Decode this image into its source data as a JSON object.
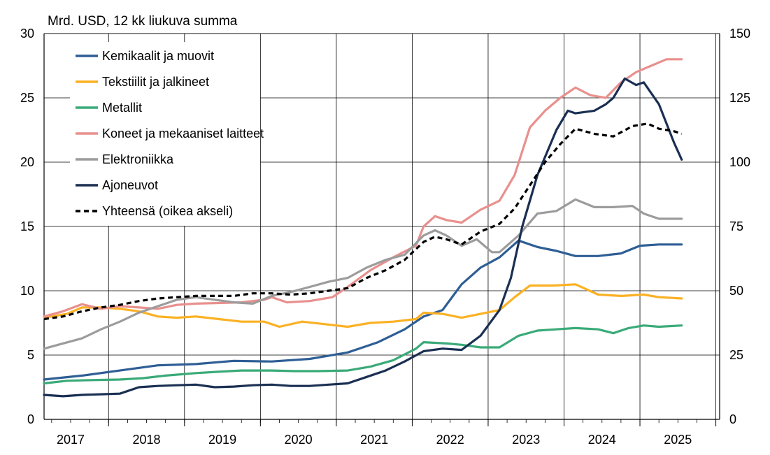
{
  "chart_data": {
    "type": "line",
    "unit_label": "Mrd. USD, 12 kk liukuva summa",
    "x_ticks": [
      "2017",
      "2018",
      "2019",
      "2020",
      "2021",
      "2022",
      "2023",
      "2024",
      "2025"
    ],
    "x_range": [
      2017.0,
      2025.9
    ],
    "y_left": {
      "range": [
        0,
        30
      ],
      "ticks": [
        "0",
        "5",
        "10",
        "15",
        "20",
        "25",
        "30"
      ]
    },
    "y_right": {
      "range": [
        0,
        150
      ],
      "ticks": [
        "0",
        "25",
        "50",
        "75",
        "100",
        "125",
        "150"
      ]
    },
    "grid": true,
    "legend_position": "top-left",
    "series": [
      {
        "name": "Kemikaalit ja muovit",
        "color": "#2E5E95",
        "dash": false,
        "axis": "left",
        "points": [
          [
            2017.0,
            3.1
          ],
          [
            2017.5,
            3.4
          ],
          [
            2018.0,
            3.8
          ],
          [
            2018.5,
            4.2
          ],
          [
            2019.0,
            4.3
          ],
          [
            2019.5,
            4.55
          ],
          [
            2020.0,
            4.5
          ],
          [
            2020.5,
            4.7
          ],
          [
            2021.0,
            5.2
          ],
          [
            2021.4,
            6.0
          ],
          [
            2021.75,
            7.0
          ],
          [
            2022.0,
            8.0
          ],
          [
            2022.25,
            8.5
          ],
          [
            2022.5,
            10.5
          ],
          [
            2022.75,
            11.8
          ],
          [
            2023.0,
            12.6
          ],
          [
            2023.25,
            13.9
          ],
          [
            2023.5,
            13.4
          ],
          [
            2023.75,
            13.1
          ],
          [
            2024.0,
            12.7
          ],
          [
            2024.3,
            12.7
          ],
          [
            2024.6,
            12.9
          ],
          [
            2024.85,
            13.5
          ],
          [
            2025.1,
            13.6
          ],
          [
            2025.4,
            13.6
          ]
        ]
      },
      {
        "name": "Tekstiilit ja jalkineet",
        "color": "#FBB124",
        "dash": false,
        "axis": "left",
        "points": [
          [
            2017.0,
            7.9
          ],
          [
            2017.3,
            8.2
          ],
          [
            2017.5,
            8.7
          ],
          [
            2017.75,
            8.7
          ],
          [
            2018.0,
            8.6
          ],
          [
            2018.25,
            8.4
          ],
          [
            2018.5,
            8.0
          ],
          [
            2018.75,
            7.9
          ],
          [
            2019.0,
            8.0
          ],
          [
            2019.3,
            7.8
          ],
          [
            2019.6,
            7.6
          ],
          [
            2019.9,
            7.6
          ],
          [
            2020.1,
            7.2
          ],
          [
            2020.4,
            7.6
          ],
          [
            2020.7,
            7.4
          ],
          [
            2021.0,
            7.2
          ],
          [
            2021.3,
            7.5
          ],
          [
            2021.6,
            7.6
          ],
          [
            2021.9,
            7.8
          ],
          [
            2022.0,
            8.3
          ],
          [
            2022.25,
            8.2
          ],
          [
            2022.5,
            7.9
          ],
          [
            2022.75,
            8.2
          ],
          [
            2023.0,
            8.5
          ],
          [
            2023.2,
            9.5
          ],
          [
            2023.4,
            10.4
          ],
          [
            2023.7,
            10.4
          ],
          [
            2024.0,
            10.5
          ],
          [
            2024.3,
            9.7
          ],
          [
            2024.6,
            9.6
          ],
          [
            2024.9,
            9.7
          ],
          [
            2025.1,
            9.5
          ],
          [
            2025.4,
            9.4
          ]
        ]
      },
      {
        "name": "Metallit",
        "color": "#3AAA79",
        "dash": false,
        "axis": "left",
        "points": [
          [
            2017.0,
            2.8
          ],
          [
            2017.3,
            3.0
          ],
          [
            2017.6,
            3.05
          ],
          [
            2018.0,
            3.1
          ],
          [
            2018.3,
            3.2
          ],
          [
            2018.6,
            3.4
          ],
          [
            2019.0,
            3.6
          ],
          [
            2019.3,
            3.7
          ],
          [
            2019.6,
            3.8
          ],
          [
            2020.0,
            3.8
          ],
          [
            2020.3,
            3.75
          ],
          [
            2020.6,
            3.75
          ],
          [
            2021.0,
            3.8
          ],
          [
            2021.3,
            4.1
          ],
          [
            2021.6,
            4.6
          ],
          [
            2021.9,
            5.5
          ],
          [
            2022.0,
            6.0
          ],
          [
            2022.3,
            5.9
          ],
          [
            2022.5,
            5.8
          ],
          [
            2022.75,
            5.6
          ],
          [
            2023.0,
            5.6
          ],
          [
            2023.25,
            6.5
          ],
          [
            2023.5,
            6.9
          ],
          [
            2023.75,
            7.0
          ],
          [
            2024.0,
            7.1
          ],
          [
            2024.3,
            7.0
          ],
          [
            2024.5,
            6.7
          ],
          [
            2024.7,
            7.1
          ],
          [
            2024.9,
            7.3
          ],
          [
            2025.1,
            7.2
          ],
          [
            2025.4,
            7.3
          ]
        ]
      },
      {
        "name": "Koneet ja mekaaniset laitteet",
        "color": "#E8908E",
        "dash": false,
        "axis": "left",
        "points": [
          [
            2017.0,
            8.0
          ],
          [
            2017.25,
            8.4
          ],
          [
            2017.5,
            8.95
          ],
          [
            2017.75,
            8.6
          ],
          [
            2018.0,
            8.8
          ],
          [
            2018.25,
            8.7
          ],
          [
            2018.5,
            8.6
          ],
          [
            2018.75,
            8.9
          ],
          [
            2019.0,
            9.0
          ],
          [
            2019.3,
            9.05
          ],
          [
            2019.6,
            9.1
          ],
          [
            2019.9,
            9.3
          ],
          [
            2020.0,
            9.5
          ],
          [
            2020.2,
            9.1
          ],
          [
            2020.5,
            9.2
          ],
          [
            2020.8,
            9.5
          ],
          [
            2021.0,
            10.3
          ],
          [
            2021.3,
            11.6
          ],
          [
            2021.6,
            12.6
          ],
          [
            2021.9,
            13.5
          ],
          [
            2022.0,
            15.0
          ],
          [
            2022.15,
            15.8
          ],
          [
            2022.3,
            15.5
          ],
          [
            2022.5,
            15.3
          ],
          [
            2022.75,
            16.3
          ],
          [
            2023.0,
            17.0
          ],
          [
            2023.2,
            19.0
          ],
          [
            2023.4,
            22.7
          ],
          [
            2023.6,
            24.0
          ],
          [
            2023.8,
            25.0
          ],
          [
            2024.0,
            25.8
          ],
          [
            2024.2,
            25.2
          ],
          [
            2024.4,
            25.0
          ],
          [
            2024.6,
            26.2
          ],
          [
            2024.8,
            27.0
          ],
          [
            2025.0,
            27.5
          ],
          [
            2025.2,
            28.0
          ],
          [
            2025.4,
            28.0
          ]
        ]
      },
      {
        "name": "Elektroniikka",
        "color": "#9C9C9C",
        "dash": false,
        "axis": "left",
        "points": [
          [
            2017.0,
            5.5
          ],
          [
            2017.25,
            5.9
          ],
          [
            2017.5,
            6.3
          ],
          [
            2017.75,
            7.0
          ],
          [
            2018.0,
            7.6
          ],
          [
            2018.25,
            8.3
          ],
          [
            2018.5,
            8.8
          ],
          [
            2018.75,
            9.3
          ],
          [
            2019.0,
            9.5
          ],
          [
            2019.25,
            9.3
          ],
          [
            2019.5,
            9.1
          ],
          [
            2019.75,
            9.0
          ],
          [
            2020.0,
            9.6
          ],
          [
            2020.25,
            9.9
          ],
          [
            2020.5,
            10.3
          ],
          [
            2020.75,
            10.7
          ],
          [
            2021.0,
            11.0
          ],
          [
            2021.25,
            11.8
          ],
          [
            2021.5,
            12.4
          ],
          [
            2021.75,
            12.8
          ],
          [
            2022.0,
            14.3
          ],
          [
            2022.15,
            14.7
          ],
          [
            2022.3,
            14.3
          ],
          [
            2022.5,
            13.5
          ],
          [
            2022.7,
            14.0
          ],
          [
            2022.9,
            13.0
          ],
          [
            2023.0,
            13.0
          ],
          [
            2023.25,
            14.3
          ],
          [
            2023.5,
            16.0
          ],
          [
            2023.75,
            16.2
          ],
          [
            2024.0,
            17.1
          ],
          [
            2024.25,
            16.5
          ],
          [
            2024.5,
            16.5
          ],
          [
            2024.75,
            16.6
          ],
          [
            2024.9,
            16.0
          ],
          [
            2025.1,
            15.6
          ],
          [
            2025.4,
            15.6
          ]
        ]
      },
      {
        "name": "Ajoneuvot",
        "color": "#1A2F52",
        "dash": false,
        "axis": "left",
        "points": [
          [
            2017.0,
            1.9
          ],
          [
            2017.25,
            1.8
          ],
          [
            2017.5,
            1.9
          ],
          [
            2017.75,
            1.95
          ],
          [
            2018.0,
            2.0
          ],
          [
            2018.25,
            2.5
          ],
          [
            2018.5,
            2.6
          ],
          [
            2018.75,
            2.65
          ],
          [
            2019.0,
            2.7
          ],
          [
            2019.25,
            2.5
          ],
          [
            2019.5,
            2.55
          ],
          [
            2019.75,
            2.65
          ],
          [
            2020.0,
            2.7
          ],
          [
            2020.25,
            2.6
          ],
          [
            2020.5,
            2.6
          ],
          [
            2020.75,
            2.7
          ],
          [
            2021.0,
            2.8
          ],
          [
            2021.25,
            3.3
          ],
          [
            2021.5,
            3.8
          ],
          [
            2021.75,
            4.5
          ],
          [
            2022.0,
            5.3
          ],
          [
            2022.25,
            5.5
          ],
          [
            2022.5,
            5.4
          ],
          [
            2022.75,
            6.5
          ],
          [
            2023.0,
            8.5
          ],
          [
            2023.15,
            11.0
          ],
          [
            2023.3,
            15.0
          ],
          [
            2023.5,
            19.0
          ],
          [
            2023.75,
            22.5
          ],
          [
            2023.9,
            24.0
          ],
          [
            2024.0,
            23.8
          ],
          [
            2024.25,
            24.0
          ],
          [
            2024.4,
            24.5
          ],
          [
            2024.5,
            25.0
          ],
          [
            2024.65,
            26.5
          ],
          [
            2024.8,
            26.0
          ],
          [
            2024.9,
            26.2
          ],
          [
            2025.1,
            24.5
          ],
          [
            2025.3,
            21.5
          ],
          [
            2025.4,
            20.2
          ]
        ]
      },
      {
        "name": "Yhteensä (oikea akseli)",
        "color": "#000000",
        "dash": true,
        "axis": "right",
        "points": [
          [
            2017.0,
            39
          ],
          [
            2017.25,
            40
          ],
          [
            2017.5,
            42
          ],
          [
            2017.75,
            43.5
          ],
          [
            2018.0,
            44.5
          ],
          [
            2018.25,
            46
          ],
          [
            2018.5,
            47
          ],
          [
            2018.75,
            47.5
          ],
          [
            2019.0,
            48
          ],
          [
            2019.25,
            48
          ],
          [
            2019.5,
            48
          ],
          [
            2019.75,
            49
          ],
          [
            2020.0,
            49
          ],
          [
            2020.25,
            48.5
          ],
          [
            2020.5,
            49
          ],
          [
            2020.75,
            50
          ],
          [
            2021.0,
            51
          ],
          [
            2021.25,
            55
          ],
          [
            2021.5,
            58
          ],
          [
            2021.75,
            62
          ],
          [
            2022.0,
            69
          ],
          [
            2022.15,
            71
          ],
          [
            2022.3,
            70
          ],
          [
            2022.5,
            68
          ],
          [
            2022.75,
            73
          ],
          [
            2023.0,
            76
          ],
          [
            2023.2,
            82
          ],
          [
            2023.4,
            91
          ],
          [
            2023.6,
            100
          ],
          [
            2023.8,
            107
          ],
          [
            2024.0,
            113
          ],
          [
            2024.25,
            111
          ],
          [
            2024.5,
            110
          ],
          [
            2024.75,
            114
          ],
          [
            2024.95,
            115
          ],
          [
            2025.1,
            113
          ],
          [
            2025.3,
            112
          ],
          [
            2025.4,
            111
          ]
        ]
      }
    ]
  }
}
